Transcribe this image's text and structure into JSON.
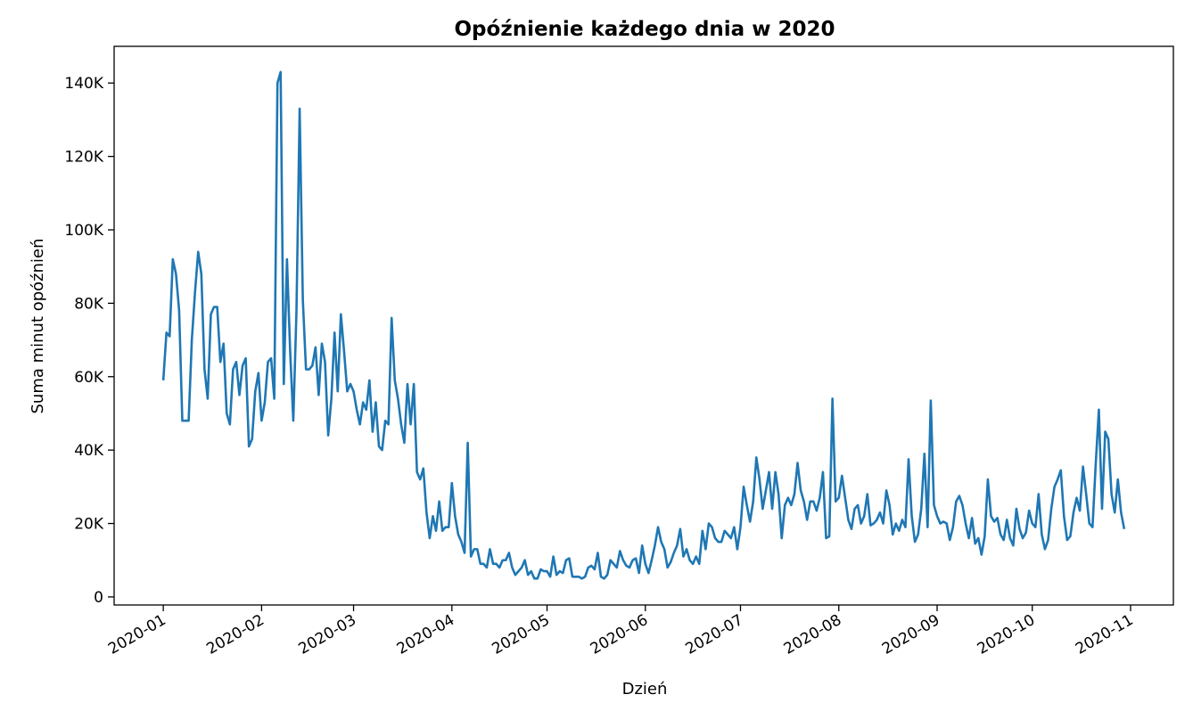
{
  "chart_data": {
    "type": "line",
    "title": "Opóźnienie każdego dnia w 2020",
    "xlabel": "Dzień",
    "ylabel": "Suma minut opóźnień",
    "x_tick_labels": [
      "2020-01",
      "2020-02",
      "2020-03",
      "2020-04",
      "2020-05",
      "2020-06",
      "2020-07",
      "2020-08",
      "2020-09",
      "2020-10",
      "2020-11"
    ],
    "x_tick_days": [
      0,
      31,
      60,
      91,
      121,
      152,
      182,
      213,
      244,
      274,
      305
    ],
    "y_tick_values": [
      0,
      20000,
      40000,
      60000,
      80000,
      100000,
      120000,
      140000
    ],
    "y_tick_labels": [
      "0",
      "20K",
      "40K",
      "60K",
      "80K",
      "100K",
      "120K",
      "140K"
    ],
    "xlim_days": [
      -15.5,
      318.5
    ],
    "ylim": [
      -2200,
      150000
    ],
    "grid": false,
    "line_color": "#1f77b4",
    "series": [
      {
        "start_date": "2020-01-01",
        "values": [
          59000,
          72000,
          71000,
          92000,
          88000,
          78000,
          48000,
          48000,
          48000,
          70000,
          83000,
          94000,
          88000,
          62000,
          54000,
          77000,
          79000,
          79000,
          64000,
          69000,
          50000,
          47000,
          62000,
          64000,
          55000,
          63000,
          65000,
          41000,
          43000,
          56000,
          61000,
          48000,
          53000,
          64000,
          65000,
          54000,
          140000,
          143000,
          58000,
          92000,
          67000,
          48000,
          78000,
          133000,
          81000,
          62000,
          62000,
          63000,
          68000,
          55000,
          69000,
          64000,
          44000,
          54000,
          72000,
          56000,
          77000,
          67000,
          56000,
          58000,
          56000,
          51000,
          47000,
          53000,
          51000,
          59000,
          45000,
          53000,
          41000,
          40000,
          48000,
          47000,
          76000,
          59000,
          54000,
          47000,
          42000,
          58000,
          47000,
          58000,
          34000,
          32000,
          35000,
          23000,
          16000,
          22000,
          18000,
          26000,
          18000,
          19000,
          19000,
          31000,
          22000,
          17000,
          15000,
          12000,
          42000,
          11000,
          13000,
          13000,
          9000,
          9000,
          8000,
          13000,
          9000,
          9000,
          8000,
          10000,
          10000,
          12000,
          8000,
          6000,
          7000,
          8000,
          10000,
          6000,
          7000,
          5000,
          5000,
          7500,
          7000,
          7000,
          5500,
          11000,
          6000,
          7000,
          6500,
          10000,
          10500,
          5500,
          5500,
          5500,
          5000,
          5500,
          8000,
          8500,
          7500,
          12000,
          5500,
          5000,
          6000,
          10000,
          9000,
          8000,
          12500,
          10000,
          8500,
          8000,
          10000,
          10500,
          6500,
          14000,
          9000,
          6500,
          10000,
          14000,
          19000,
          15000,
          13000,
          8000,
          9500,
          12000,
          14000,
          18500,
          11000,
          13000,
          10000,
          9000,
          11000,
          9000,
          18000,
          13000,
          20000,
          19000,
          16000,
          15000,
          15000,
          18000,
          17000,
          16000,
          19000,
          13000,
          19000,
          30000,
          25000,
          20500,
          26000,
          38000,
          32000,
          24000,
          29000,
          34000,
          24000,
          34000,
          28000,
          16000,
          25000,
          27000,
          25000,
          28000,
          36500,
          29000,
          26000,
          21000,
          26000,
          26000,
          23500,
          27000,
          34000,
          16000,
          16500,
          54000,
          26000,
          27000,
          33000,
          27000,
          21000,
          18500,
          24000,
          25000,
          20000,
          22000,
          28000,
          19500,
          20000,
          21000,
          23000,
          20000,
          29000,
          25000,
          17000,
          20000,
          18000,
          21000,
          19000,
          37500,
          22000,
          15000,
          17000,
          24000,
          39000,
          19000,
          53500,
          25000,
          22000,
          20000,
          20500,
          20000,
          15500,
          19000,
          26000,
          27500,
          25000,
          20000,
          16000,
          21500,
          14500,
          16000,
          11500,
          16500,
          32000,
          22000,
          20500,
          21500,
          17000,
          15500,
          21000,
          16000,
          14000,
          24000,
          18500,
          16000,
          17500,
          23500,
          20000,
          19000,
          28000,
          17000,
          13000,
          15500,
          24000,
          30000,
          32000,
          34500,
          22000,
          15500,
          16500,
          23000,
          27000,
          23500,
          35500,
          28000,
          20000,
          19000,
          36000,
          51000,
          24000,
          45000,
          43000,
          28000,
          23000,
          32000,
          23000,
          18500
        ]
      }
    ]
  }
}
